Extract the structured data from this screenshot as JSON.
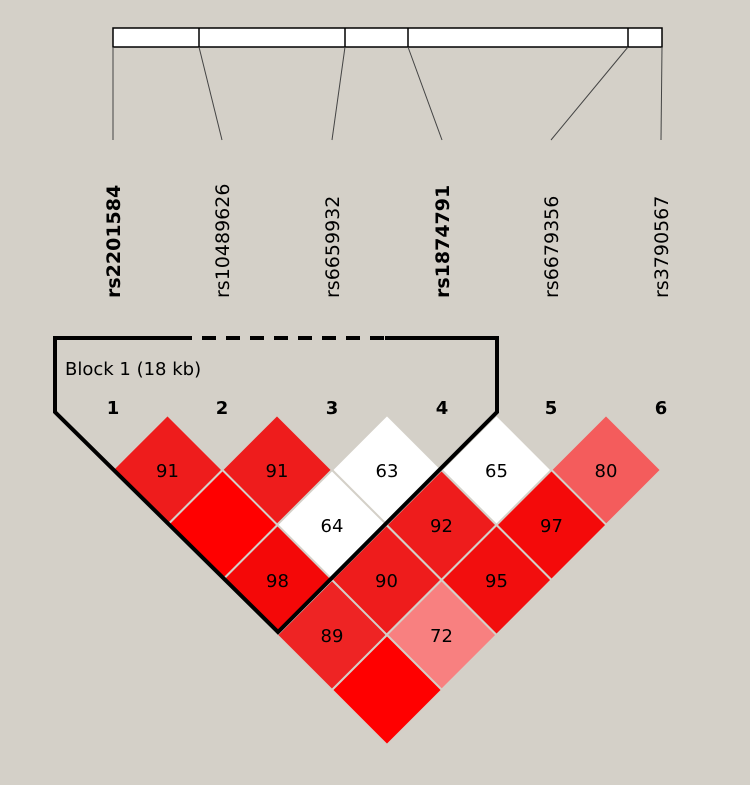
{
  "snps": [
    {
      "number": 1,
      "name": "rs2201584",
      "bold": true
    },
    {
      "number": 2,
      "name": "rs10489626",
      "bold": false
    },
    {
      "number": 3,
      "name": "rs6659932",
      "bold": false
    },
    {
      "number": 4,
      "name": "rs1874791",
      "bold": true
    },
    {
      "number": 5,
      "name": "rs6679356",
      "bold": false
    },
    {
      "number": 6,
      "name": "rs3790567",
      "bold": false
    }
  ],
  "block": {
    "label": "Block 1 (18 kb)"
  },
  "cells": [
    {
      "pair": [
        1,
        2
      ],
      "label": "91",
      "color": "#ee1c1c"
    },
    {
      "pair": [
        2,
        3
      ],
      "label": "91",
      "color": "#ee1c1c"
    },
    {
      "pair": [
        3,
        4
      ],
      "label": "63",
      "color": "#ffffff"
    },
    {
      "pair": [
        4,
        5
      ],
      "label": "65",
      "color": "#ffffff"
    },
    {
      "pair": [
        5,
        6
      ],
      "label": "80",
      "color": "#f45c5c"
    },
    {
      "pair": [
        1,
        3
      ],
      "color": "#ff0000"
    },
    {
      "pair": [
        2,
        4
      ],
      "label": "64",
      "color": "#ffffff"
    },
    {
      "pair": [
        3,
        5
      ],
      "label": "92",
      "color": "#ee1c1c"
    },
    {
      "pair": [
        4,
        6
      ],
      "label": "97",
      "color": "#f40a0a"
    },
    {
      "pair": [
        1,
        4
      ],
      "label": "98",
      "color": "#f40808"
    },
    {
      "pair": [
        2,
        5
      ],
      "label": "90",
      "color": "#ee1c1c"
    },
    {
      "pair": [
        3,
        6
      ],
      "label": "95",
      "color": "#f20e0e"
    },
    {
      "pair": [
        1,
        5
      ],
      "label": "89",
      "color": "#ee2424"
    },
    {
      "pair": [
        2,
        6
      ],
      "label": "72",
      "color": "#f88080"
    },
    {
      "pair": [
        1,
        6
      ],
      "color": "#ff0000"
    }
  ]
}
